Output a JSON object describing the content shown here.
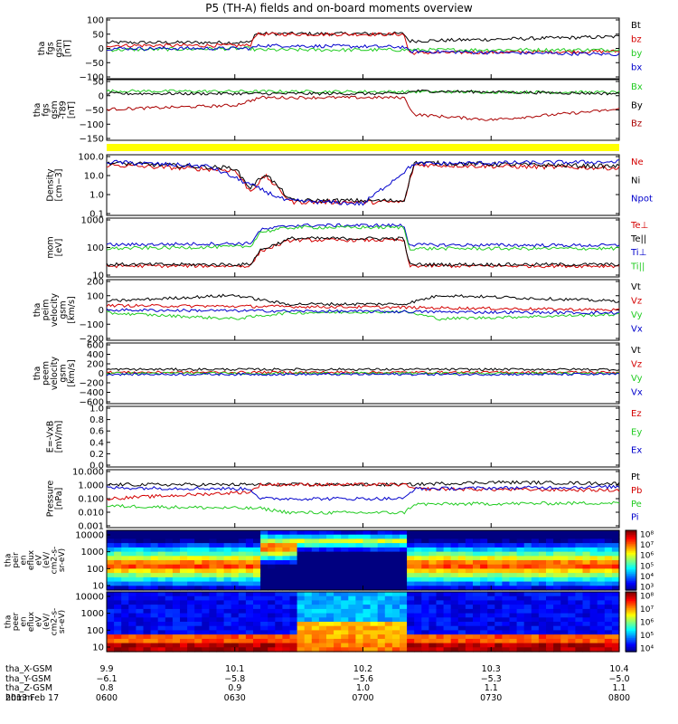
{
  "title": "P5 (TH-A) fields and on-board moments overview",
  "colors": {
    "black": "#000000",
    "red": "#d40000",
    "green": "#22cc22",
    "blue": "#0000cc",
    "darkred": "#aa0000",
    "yellow": "#ffff00"
  },
  "chart_data": {
    "type": "line",
    "x_time_range": [
      "2013-02-17 06:00",
      "2013-02-17 08:00"
    ],
    "x_ticks": [
      "0600",
      "0630",
      "0700",
      "0730",
      "0800"
    ],
    "panels": [
      {
        "ylabel": [
          "tha",
          "fgs",
          "gsm",
          "[nT]"
        ],
        "yticks": [
          "100",
          "50",
          "0",
          "−50",
          "−100"
        ],
        "ylim": [
          -100,
          100
        ],
        "scale": "linear",
        "series": [
          {
            "name": "Bt",
            "color": "#000000",
            "trend": [
              [
                0,
                20
              ],
              [
                0.28,
                20
              ],
              [
                0.29,
                50
              ],
              [
                0.58,
                50
              ],
              [
                0.59,
                25
              ],
              [
                1,
                40
              ]
            ]
          },
          {
            "name": "bz",
            "color": "#d40000",
            "trend": [
              [
                0,
                10
              ],
              [
                0.28,
                10
              ],
              [
                0.29,
                48
              ],
              [
                0.58,
                48
              ],
              [
                0.59,
                -15
              ],
              [
                1,
                -10
              ]
            ]
          },
          {
            "name": "by",
            "color": "#22cc22",
            "trend": [
              [
                0,
                -5
              ],
              [
                0.28,
                0
              ],
              [
                0.29,
                -5
              ],
              [
                0.58,
                -5
              ],
              [
                1,
                -5
              ]
            ]
          },
          {
            "name": "bx",
            "color": "#0000cc",
            "trend": [
              [
                0,
                0
              ],
              [
                0.28,
                0
              ],
              [
                0.3,
                10
              ],
              [
                0.58,
                5
              ],
              [
                0.59,
                -10
              ],
              [
                1,
                -20
              ]
            ]
          }
        ]
      },
      {
        "ylabel": [
          "tha",
          "fgs",
          "gsm",
          "-T89",
          "[nT]"
        ],
        "yticks": [
          "50",
          "0",
          "−50",
          "−100",
          "−150"
        ],
        "ylim": [
          -175,
          50
        ],
        "scale": "linear",
        "series": [
          {
            "name": "Bx",
            "color": "#22cc22",
            "trend": [
              [
                0,
                10
              ],
              [
                1,
                5
              ]
            ]
          },
          {
            "name": "By",
            "color": "#000000",
            "trend": [
              [
                0,
                0
              ],
              [
                0.58,
                0
              ],
              [
                0.6,
                10
              ],
              [
                1,
                0
              ]
            ]
          },
          {
            "name": "Bz",
            "color": "#aa0000",
            "trend": [
              [
                0,
                -60
              ],
              [
                0.25,
                -45
              ],
              [
                0.3,
                -15
              ],
              [
                0.58,
                -15
              ],
              [
                0.6,
                -80
              ],
              [
                0.75,
                -100
              ],
              [
                1,
                -60
              ]
            ]
          }
        ]
      },
      {
        "ylabel": [
          "Density",
          "[cm−3]"
        ],
        "yticks": [
          "100.0",
          "10.0",
          "1.0",
          "0.1"
        ],
        "ylim": [
          0.1,
          200
        ],
        "scale": "log",
        "series": [
          {
            "name": "Ne",
            "color": "#d40000",
            "trend": [
              [
                0,
                60
              ],
              [
                0.25,
                30
              ],
              [
                0.28,
                2
              ],
              [
                0.31,
                15
              ],
              [
                0.36,
                0.5
              ],
              [
                0.58,
                0.5
              ],
              [
                0.6,
                60
              ],
              [
                1,
                40
              ]
            ]
          },
          {
            "name": "Ni",
            "color": "#000000",
            "trend": [
              [
                0,
                80
              ],
              [
                0.25,
                40
              ],
              [
                0.28,
                3
              ],
              [
                0.31,
                20
              ],
              [
                0.36,
                0.6
              ],
              [
                0.58,
                0.6
              ],
              [
                0.6,
                80
              ],
              [
                1,
                50
              ]
            ]
          },
          {
            "name": "Npot",
            "color": "#0000cc",
            "trend": [
              [
                0,
                90
              ],
              [
                0.2,
                50
              ],
              [
                0.35,
                0.6
              ],
              [
                0.5,
                0.4
              ],
              [
                0.6,
                70
              ],
              [
                1,
                90
              ]
            ]
          }
        ]
      },
      {
        "ylabel": [
          "mom",
          "[eV]"
        ],
        "yticks": [
          "1000",
          "100",
          "10"
        ],
        "ylim": [
          10,
          5000
        ],
        "scale": "log",
        "series": [
          {
            "name": "Te⊥",
            "color": "#d40000",
            "trend": [
              [
                0,
                30
              ],
              [
                0.28,
                30
              ],
              [
                0.3,
                150
              ],
              [
                0.36,
                500
              ],
              [
                0.58,
                500
              ],
              [
                0.59,
                30
              ],
              [
                1,
                30
              ]
            ]
          },
          {
            "name": "Te||",
            "color": "#000000",
            "trend": [
              [
                0,
                35
              ],
              [
                0.28,
                35
              ],
              [
                0.3,
                170
              ],
              [
                0.36,
                600
              ],
              [
                0.58,
                600
              ],
              [
                0.59,
                35
              ],
              [
                1,
                35
              ]
            ]
          },
          {
            "name": "Ti⊥",
            "color": "#0000cc",
            "trend": [
              [
                0,
                300
              ],
              [
                0.28,
                350
              ],
              [
                0.3,
                1500
              ],
              [
                0.36,
                2500
              ],
              [
                0.58,
                2500
              ],
              [
                0.59,
                300
              ],
              [
                1,
                280
              ]
            ]
          },
          {
            "name": "Ti||",
            "color": "#22cc22",
            "trend": [
              [
                0,
                200
              ],
              [
                0.28,
                250
              ],
              [
                0.3,
                1200
              ],
              [
                0.36,
                2000
              ],
              [
                0.58,
                2000
              ],
              [
                0.59,
                200
              ],
              [
                1,
                200
              ]
            ]
          }
        ]
      },
      {
        "ylabel": [
          "tha",
          "peim",
          "velocity",
          "gsm",
          "[km/s]"
        ],
        "yticks": [
          "200",
          "100",
          "0",
          "−100",
          "−200"
        ],
        "ylim": [
          -200,
          200
        ],
        "scale": "linear",
        "series": [
          {
            "name": "Vt",
            "color": "#000000",
            "trend": [
              [
                0,
                60
              ],
              [
                0.25,
                100
              ],
              [
                0.35,
                40
              ],
              [
                0.58,
                40
              ],
              [
                0.65,
                100
              ],
              [
                1,
                60
              ]
            ]
          },
          {
            "name": "Vz",
            "color": "#d40000",
            "trend": [
              [
                0,
                30
              ],
              [
                0.5,
                20
              ],
              [
                1,
                0
              ]
            ]
          },
          {
            "name": "Vy",
            "color": "#22cc22",
            "trend": [
              [
                0,
                -20
              ],
              [
                0.25,
                -60
              ],
              [
                0.35,
                -20
              ],
              [
                0.58,
                -10
              ],
              [
                0.65,
                -60
              ],
              [
                1,
                -30
              ]
            ]
          },
          {
            "name": "Vx",
            "color": "#0000cc",
            "trend": [
              [
                0,
                0
              ],
              [
                1,
                -20
              ]
            ]
          }
        ]
      },
      {
        "ylabel": [
          "tha",
          "peem",
          "velocity",
          "gsm",
          "[km/s]"
        ],
        "yticks": [
          "600",
          "400",
          "200",
          "0",
          "−200",
          "−400",
          "−600"
        ],
        "ylim": [
          -600,
          600
        ],
        "scale": "linear",
        "series": [
          {
            "name": "Vt",
            "color": "#000000",
            "trend": [
              [
                0,
                80
              ],
              [
                1,
                80
              ]
            ]
          },
          {
            "name": "Vz",
            "color": "#d40000",
            "trend": [
              [
                0,
                20
              ],
              [
                1,
                20
              ]
            ]
          },
          {
            "name": "Vy",
            "color": "#22cc22",
            "trend": [
              [
                0,
                0
              ],
              [
                1,
                0
              ]
            ]
          },
          {
            "name": "Vx",
            "color": "#0000cc",
            "trend": [
              [
                0,
                -20
              ],
              [
                1,
                -20
              ]
            ]
          }
        ]
      },
      {
        "ylabel": [
          "E=-VxB",
          "[mV/m]"
        ],
        "yticks": [
          "1.0",
          "0.8",
          "0.6",
          "0.4",
          "0.2",
          "0.0"
        ],
        "ylim": [
          0,
          1
        ],
        "scale": "linear",
        "series": [
          {
            "name": "Ez",
            "color": "#d40000",
            "trend": []
          },
          {
            "name": "Ey",
            "color": "#22cc22",
            "trend": []
          },
          {
            "name": "Ex",
            "color": "#0000cc",
            "trend": []
          }
        ]
      },
      {
        "ylabel": [
          "Pressure",
          "[nPa]"
        ],
        "yticks": [
          "10.000",
          "1.000",
          "0.100",
          "0.010",
          "0.001"
        ],
        "ylim": [
          0.001,
          10
        ],
        "scale": "log",
        "series": [
          {
            "name": "Pt",
            "color": "#000000",
            "trend": [
              [
                0,
                1
              ],
              [
                0.58,
                1
              ],
              [
                0.75,
                1.5
              ],
              [
                1,
                1.2
              ]
            ]
          },
          {
            "name": "Pb",
            "color": "#d40000",
            "trend": [
              [
                0,
                0.1
              ],
              [
                0.28,
                0.3
              ],
              [
                0.3,
                1
              ],
              [
                0.58,
                1
              ],
              [
                0.6,
                0.5
              ],
              [
                1,
                0.4
              ]
            ]
          },
          {
            "name": "Pe",
            "color": "#22cc22",
            "trend": [
              [
                0,
                0.03
              ],
              [
                0.3,
                0.02
              ],
              [
                0.36,
                0.01
              ],
              [
                0.58,
                0.01
              ],
              [
                0.6,
                0.04
              ],
              [
                1,
                0.05
              ]
            ]
          },
          {
            "name": "Pi",
            "color": "#0000cc",
            "trend": [
              [
                0,
                0.6
              ],
              [
                0.28,
                0.5
              ],
              [
                0.3,
                0.1
              ],
              [
                0.58,
                0.1
              ],
              [
                0.6,
                0.5
              ],
              [
                1,
                0.7
              ]
            ]
          }
        ]
      }
    ],
    "spectrograms": [
      {
        "ylabel": [
          "tha",
          "peir",
          "en",
          "eflux",
          "eV",
          "(eV/",
          "cm2-s-",
          "sr-eV)"
        ],
        "yticks": [
          "10000",
          "1000",
          "100",
          "10"
        ],
        "colorbar_ticks": [
          "10⁸",
          "10⁷",
          "10⁶",
          "10⁵",
          "10⁴",
          "10³"
        ]
      },
      {
        "ylabel": [
          "tha",
          "peer",
          "en",
          "eflux",
          "eV",
          "(eV/",
          "cm2-s-",
          "sr-eV)"
        ],
        "yticks": [
          "10000",
          "1000",
          "100",
          "10"
        ],
        "colorbar_ticks": [
          "10⁸",
          "10⁷",
          "10⁶",
          "10⁵",
          "10⁴"
        ]
      }
    ]
  },
  "footer": {
    "rows": [
      {
        "label": "tha_X-GSM",
        "values": [
          "9.9",
          "10.1",
          "10.2",
          "10.3",
          "10.4"
        ]
      },
      {
        "label": "tha_Y-GSM",
        "values": [
          "−6.1",
          "−5.8",
          "−5.6",
          "−5.3",
          "−5.0"
        ]
      },
      {
        "label": "tha_Z-GSM",
        "values": [
          "0.8",
          "0.9",
          "1.0",
          "1.1",
          "1.1"
        ]
      },
      {
        "label": "hhmm",
        "values": [
          "0600",
          "0630",
          "0700",
          "0730",
          "0800"
        ]
      }
    ],
    "date": "2013 Feb 17"
  }
}
